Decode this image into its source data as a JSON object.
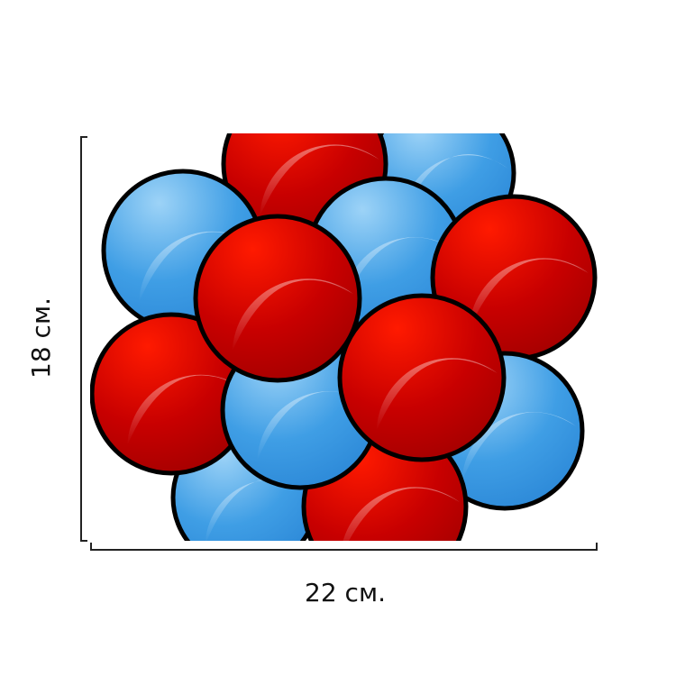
{
  "dimensions": {
    "height_label": "18 см.",
    "width_label": "22 см."
  },
  "balls": [
    {
      "color": "blue"
    },
    {
      "color": "red"
    },
    {
      "color": "blue"
    },
    {
      "color": "blue"
    },
    {
      "color": "red"
    },
    {
      "color": "blue"
    },
    {
      "color": "blue"
    },
    {
      "color": "red"
    },
    {
      "color": "red"
    },
    {
      "color": "blue"
    },
    {
      "color": "red"
    },
    {
      "color": "red"
    }
  ],
  "colors": {
    "red": "#e00000",
    "blue": "#5aaee8",
    "outline": "#000000"
  }
}
